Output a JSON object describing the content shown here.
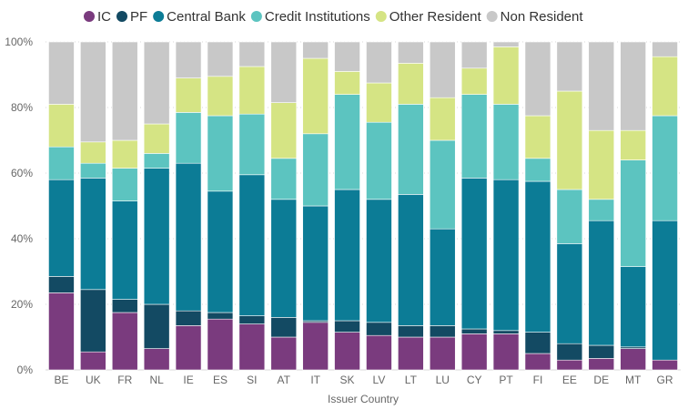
{
  "chart_data": {
    "type": "bar",
    "stacked": true,
    "percent": true,
    "xlabel": "Issuer Country",
    "ylabel": "",
    "ylim": [
      0,
      100
    ],
    "y_ticks": [
      "0%",
      "20%",
      "40%",
      "60%",
      "80%",
      "100%"
    ],
    "grid": true,
    "legend_position": "top",
    "categories": [
      "BE",
      "UK",
      "FR",
      "NL",
      "IE",
      "ES",
      "SI",
      "AT",
      "IT",
      "SK",
      "LV",
      "LT",
      "LU",
      "CY",
      "PT",
      "FI",
      "EE",
      "DE",
      "MT",
      "GR"
    ],
    "series": [
      {
        "name": "IC",
        "color": "#7a3b7e",
        "values": [
          23.5,
          5.5,
          17.5,
          6.5,
          13.5,
          15.5,
          14.0,
          10.0,
          14.5,
          11.5,
          10.5,
          10.0,
          10.0,
          11.0,
          11.0,
          5.0,
          3.0,
          3.5,
          6.5,
          3.0
        ]
      },
      {
        "name": "PF",
        "color": "#134a63",
        "values": [
          5.0,
          19.0,
          4.0,
          13.5,
          4.5,
          2.0,
          2.5,
          6.0,
          0.5,
          3.5,
          4.0,
          3.5,
          3.5,
          1.5,
          1.0,
          6.5,
          5.0,
          4.0,
          0.5,
          0.0
        ]
      },
      {
        "name": "Central Bank",
        "color": "#0c7c96",
        "values": [
          29.5,
          34.0,
          30.0,
          41.5,
          45.0,
          37.0,
          43.0,
          36.0,
          35.0,
          40.0,
          37.5,
          40.0,
          29.5,
          46.0,
          46.0,
          46.0,
          30.5,
          38.0,
          24.5,
          42.5
        ]
      },
      {
        "name": "Credit Institutions",
        "color": "#5cc4c0",
        "values": [
          10.0,
          4.5,
          10.0,
          4.5,
          15.5,
          23.0,
          18.5,
          12.5,
          22.0,
          29.0,
          23.5,
          27.5,
          27.0,
          25.5,
          23.0,
          7.0,
          16.5,
          6.5,
          32.5,
          32.0
        ]
      },
      {
        "name": "Other Resident",
        "color": "#d5e484",
        "values": [
          13.0,
          6.5,
          8.5,
          9.0,
          10.5,
          12.0,
          14.5,
          17.0,
          23.0,
          7.0,
          12.0,
          12.5,
          13.0,
          8.0,
          17.5,
          13.0,
          30.0,
          21.0,
          9.0,
          18.0
        ]
      },
      {
        "name": "Non Resident",
        "color": "#c8c8c8",
        "values": [
          19.0,
          30.5,
          30.0,
          25.0,
          11.0,
          10.5,
          7.5,
          18.5,
          5.0,
          9.0,
          12.5,
          6.5,
          17.0,
          8.0,
          1.5,
          22.5,
          15.0,
          27.0,
          27.0,
          4.5
        ]
      }
    ]
  },
  "colors": {
    "gridline": "#d9d9d9",
    "bar_outline": "#ffffff"
  }
}
